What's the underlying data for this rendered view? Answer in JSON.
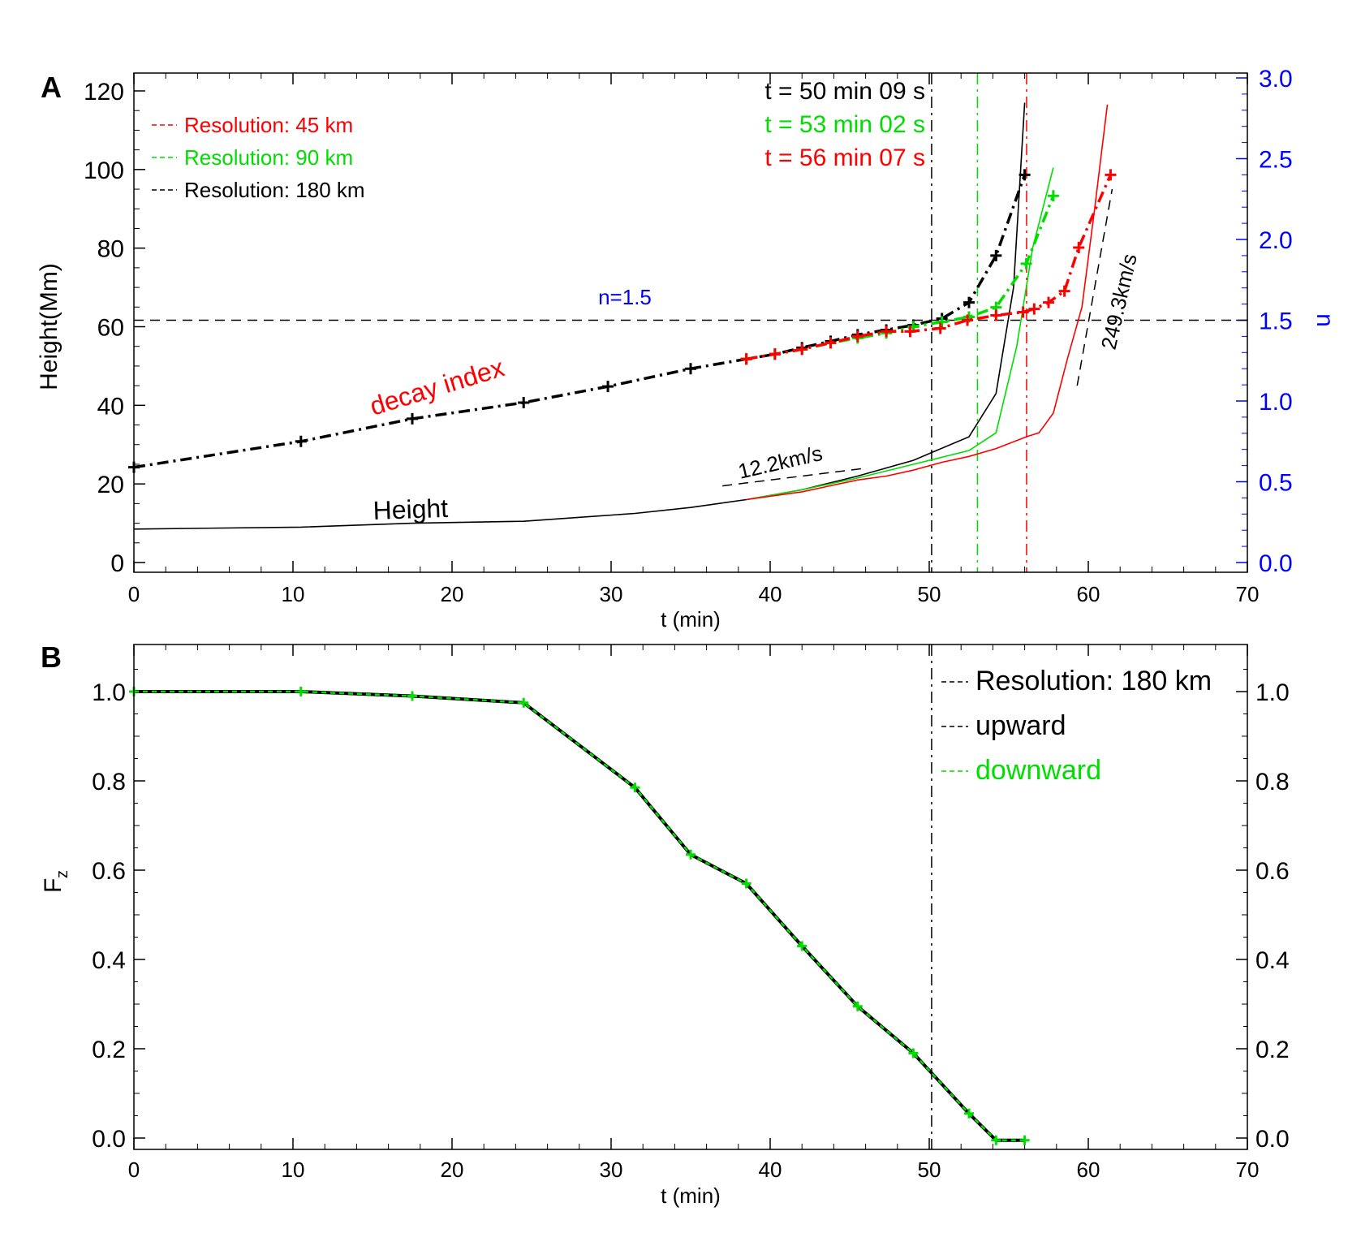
{
  "chart_data": [
    {
      "panel_label": "A",
      "type": "line",
      "xlabel": "t (min)",
      "ylabel": "Height(Mm)",
      "ylabel_right": "n",
      "xlim": [
        0,
        70
      ],
      "ylim": [
        0,
        120
      ],
      "ylim_right": [
        0.0,
        3.0
      ],
      "x_ticks": [
        0,
        10,
        20,
        30,
        40,
        50,
        60,
        70
      ],
      "y_ticks": [
        0,
        20,
        40,
        60,
        80,
        100,
        120
      ],
      "y_right_ticks": [
        "0.0",
        "0.5",
        "1.0",
        "1.5",
        "2.0",
        "2.5",
        "3.0"
      ],
      "colors": {
        "r45": "#ff0000",
        "r90": "#00dd00",
        "r180": "#000000",
        "right_axis": "#0000ff"
      },
      "legend": [
        {
          "label": "Resolution: 45 km",
          "color": "#ff0000"
        },
        {
          "label": "Resolution: 90 km",
          "color": "#00dd00"
        },
        {
          "label": "Resolution: 180 km",
          "color": "#000000"
        }
      ],
      "time_labels": [
        {
          "text": "t = 50 min 09 s",
          "color": "#000000"
        },
        {
          "text": "t = 53 min 02 s",
          "color": "#00dd00"
        },
        {
          "text": "t = 56 min 07 s",
          "color": "#ff0000"
        }
      ],
      "vlines": [
        {
          "x": 50.15,
          "color": "#000000"
        },
        {
          "x": 53.03,
          "color": "#00dd00"
        },
        {
          "x": 56.12,
          "color": "#ff0000"
        }
      ],
      "hline": {
        "n": 1.5,
        "label": "n=1.5",
        "label_color": "#0000ff"
      },
      "annotations": {
        "decay_index": "decay index",
        "height": "Height",
        "slow_speed": "12.2km/s",
        "fast_speed": "249.3km/s"
      },
      "slow_fit": {
        "x": [
          37,
          46
        ],
        "y": [
          19.5,
          24
        ]
      },
      "fast_fit": {
        "x": [
          59.3,
          61.5
        ],
        "y": [
          45,
          95
        ]
      },
      "height_series": [
        {
          "name": "Resolution: 180 km",
          "color": "#000000",
          "x": [
            0,
            10.5,
            17.5,
            24.5,
            31.5,
            35,
            38.5,
            42,
            45.5,
            49,
            52.5,
            54.2,
            55.3,
            56
          ],
          "y": [
            8.5,
            9,
            10,
            10.5,
            12.5,
            14,
            16,
            18.5,
            22,
            26,
            32,
            43,
            70,
            117
          ]
        },
        {
          "name": "Resolution: 90 km",
          "color": "#00dd00",
          "x": [
            38.5,
            42,
            45.5,
            49,
            52.5,
            54.2,
            55.5,
            56.5,
            57.8
          ],
          "y": [
            16,
            18.5,
            21.5,
            25,
            28.5,
            33,
            55,
            80,
            100.5
          ]
        },
        {
          "name": "Resolution: 45 km",
          "color": "#ff0000",
          "x": [
            38.5,
            42,
            45.5,
            47.3,
            49,
            50.8,
            52.5,
            54.2,
            56.1,
            56.9,
            57.8,
            58.7,
            59.6,
            60.4,
            61.2
          ],
          "y": [
            16,
            18,
            21,
            22,
            23.5,
            25.5,
            27,
            29,
            32,
            33,
            38,
            52,
            65,
            90,
            116.5
          ]
        }
      ],
      "decay_index_series": [
        {
          "name": "Resolution: 180 km",
          "color": "#000000",
          "x": [
            0,
            10.5,
            17.5,
            24.5,
            29.8,
            35,
            38.5,
            40.3,
            42,
            43.8,
            45.5,
            47.3,
            49,
            50.8,
            52.5,
            54.2,
            56
          ],
          "y": [
            0.59,
            0.75,
            0.89,
            0.99,
            1.09,
            1.2,
            1.26,
            1.29,
            1.33,
            1.37,
            1.41,
            1.44,
            1.47,
            1.51,
            1.61,
            1.9,
            2.4
          ]
        },
        {
          "name": "Resolution: 90 km",
          "color": "#00dd00",
          "x": [
            38.5,
            40.3,
            42,
            43.8,
            45.5,
            47.3,
            49,
            50.8,
            52.5,
            54.2,
            56.1,
            57.8
          ],
          "y": [
            1.26,
            1.29,
            1.32,
            1.36,
            1.39,
            1.42,
            1.46,
            1.49,
            1.52,
            1.58,
            1.85,
            2.27
          ]
        },
        {
          "name": "Resolution: 45 km",
          "color": "#ff0000",
          "x": [
            38.5,
            40.3,
            42,
            43.8,
            45.5,
            47.3,
            48.8,
            50.7,
            52.4,
            54.2,
            55.9,
            56.6,
            57.5,
            58.5,
            59.4,
            61.4
          ],
          "y": [
            1.26,
            1.29,
            1.32,
            1.36,
            1.4,
            1.43,
            1.43,
            1.45,
            1.5,
            1.53,
            1.55,
            1.57,
            1.61,
            1.68,
            1.95,
            2.4
          ]
        }
      ]
    },
    {
      "panel_label": "B",
      "type": "line",
      "xlabel": "t (min)",
      "ylabel": "F",
      "ylabel_sub": "z",
      "xlim": [
        0,
        70
      ],
      "ylim": [
        -0.01,
        1.1
      ],
      "x_ticks": [
        0,
        10,
        20,
        30,
        40,
        50,
        60,
        70
      ],
      "y_ticks": [
        "0.0",
        "0.2",
        "0.4",
        "0.6",
        "0.8",
        "1.0"
      ],
      "vline": {
        "x": 50.15,
        "color": "#000000"
      },
      "legend": [
        {
          "label": "Resolution: 180 km",
          "color": "#000000"
        },
        {
          "label": "upward",
          "color": "#000000"
        },
        {
          "label": "downward",
          "color": "#00dd00"
        }
      ],
      "x": [
        0,
        10.5,
        17.5,
        24.5,
        31.5,
        35,
        38.5,
        42,
        45.5,
        49,
        52.5,
        54.2,
        56
      ],
      "series": [
        {
          "name": "upward",
          "color": "#000000",
          "values": [
            1.0,
            1.0,
            0.99,
            0.975,
            0.785,
            0.635,
            0.57,
            0.43,
            0.295,
            0.19,
            0.055,
            -0.005,
            -0.005
          ]
        },
        {
          "name": "downward",
          "color": "#00dd00",
          "values": [
            1.0,
            1.0,
            0.99,
            0.975,
            0.785,
            0.635,
            0.57,
            0.43,
            0.295,
            0.19,
            0.055,
            -0.005,
            -0.005
          ]
        }
      ]
    }
  ]
}
